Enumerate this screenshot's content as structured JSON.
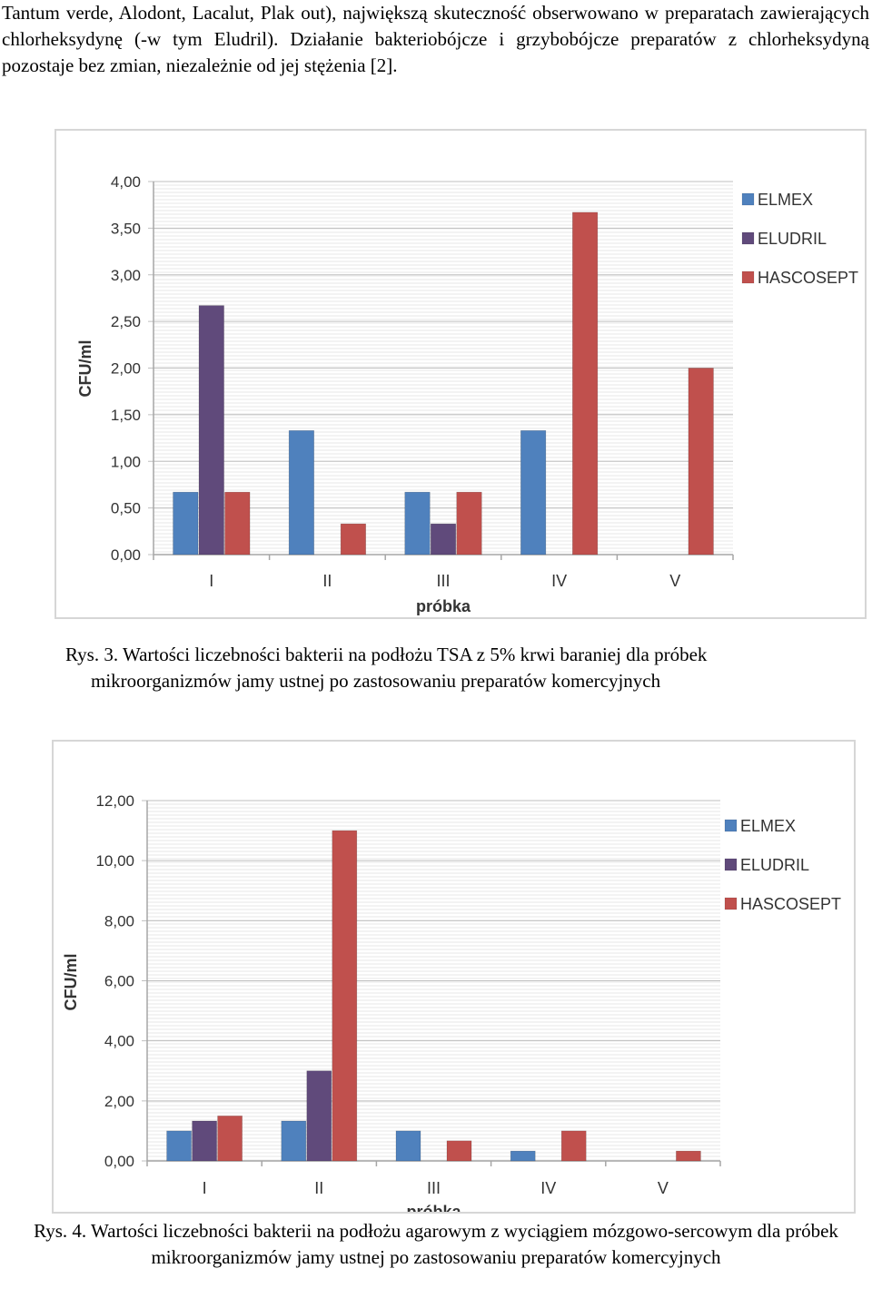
{
  "intro_text": "Tantum verde, Alodont, Lacalut, Plak out), największą skuteczność obserwowano w preparatach zawierających chlorheksydynę (-w tym Eludril). Działanie bakteriobójcze i grzybobójcze preparatów z chlorheksydyną pozostaje bez zmian, niezależnie od jej stężenia [2].",
  "captions": {
    "fig3_line1": "Rys. 3. Wartości liczebności bakterii na podłożu TSA z 5% krwi baraniej dla próbek",
    "fig3_line2": "mikroorganizmów jamy ustnej po zastosowaniu preparatów komercyjnych",
    "fig4": "Rys. 4. Wartości liczebności bakterii na podłożu agarowym z wyciągiem mózgowo-sercowym dla próbek mikroorganizmów jamy ustnej po zastosowaniu preparatów komercyjnych"
  },
  "colors": {
    "ELMEX": "#4f81bd",
    "ELUDRIL": "#604a7b",
    "HASCOSEPT": "#c0504d",
    "grid": "#d9d9d9",
    "axis": "#a6a6a6"
  },
  "chart_data": [
    {
      "type": "bar",
      "categories": [
        "I",
        "II",
        "III",
        "IV",
        "V"
      ],
      "xlabel": "próbka",
      "ylabel": "CFU/ml",
      "ylim": [
        0,
        4
      ],
      "yticks": [
        "0,00",
        "0,50",
        "1,00",
        "1,50",
        "2,00",
        "2,50",
        "3,00",
        "3,50",
        "4,00"
      ],
      "grid": true,
      "legend_position": "top-right",
      "series": [
        {
          "name": "ELMEX",
          "values": [
            0.67,
            1.33,
            0.67,
            1.33,
            0
          ]
        },
        {
          "name": "ELUDRIL",
          "values": [
            2.67,
            0,
            0.33,
            0,
            0
          ]
        },
        {
          "name": "HASCOSEPT",
          "values": [
            0.67,
            0.33,
            0.67,
            3.67,
            2.0
          ]
        }
      ]
    },
    {
      "type": "bar",
      "categories": [
        "I",
        "II",
        "III",
        "IV",
        "V"
      ],
      "xlabel": "próbka",
      "ylabel": "CFU/ml",
      "ylim": [
        0,
        12
      ],
      "yticks": [
        "0,00",
        "2,00",
        "4,00",
        "6,00",
        "8,00",
        "10,00",
        "12,00"
      ],
      "grid": true,
      "legend_position": "top-right",
      "series": [
        {
          "name": "ELMEX",
          "values": [
            1.0,
            1.33,
            1.0,
            0.33,
            0
          ]
        },
        {
          "name": "ELUDRIL",
          "values": [
            1.33,
            3.0,
            0,
            0,
            0
          ]
        },
        {
          "name": "HASCOSEPT",
          "values": [
            1.5,
            11.0,
            0.67,
            1.0,
            0.33
          ]
        }
      ]
    }
  ]
}
